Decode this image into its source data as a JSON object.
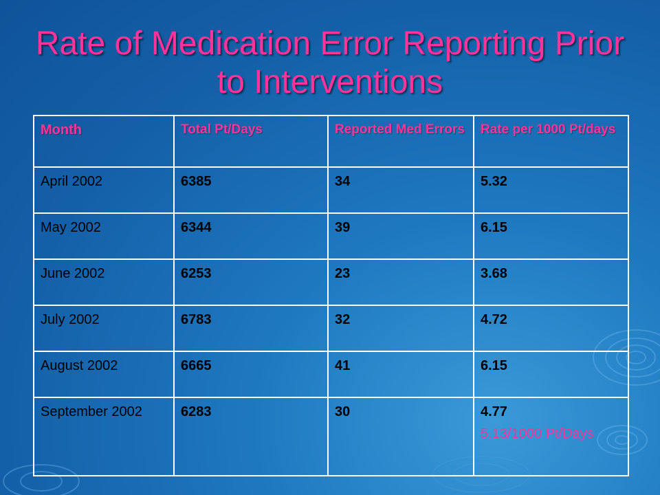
{
  "slide": {
    "title": "Rate of Medication Error Reporting Prior to Interventions"
  },
  "table": {
    "headers": [
      "Month",
      "Total Pt/Days",
      "Reported Med Errors",
      "Rate per 1000 Pt/days"
    ],
    "rows": [
      [
        "April 2002",
        "6385",
        "34",
        "5.32"
      ],
      [
        "May 2002",
        "6344",
        "39",
        "6.15"
      ],
      [
        "June 2002",
        "6253",
        "23",
        "3.68"
      ],
      [
        "July 2002",
        "6783",
        "32",
        "4.72"
      ],
      [
        "August 2002",
        "6665",
        "41",
        "6.15"
      ],
      [
        "September 2002",
        "6283",
        "30",
        "4.77"
      ]
    ],
    "summary": "5.13/1000 Pt/Days"
  },
  "colors": {
    "title": "#ff3399",
    "header_text": "#ff3399",
    "cell_text": "#000000",
    "border": "#ffffff",
    "background": "#1a6db5"
  }
}
